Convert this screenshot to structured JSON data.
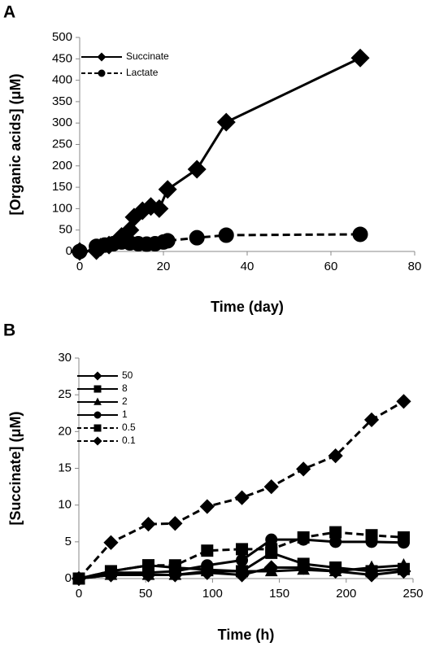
{
  "chart_data": [
    {
      "type": "line",
      "panel_label": "A",
      "x_label": "Time (day)",
      "y_label": "[Organic acids] (μM)",
      "xlim": [
        0,
        80
      ],
      "xticks": [
        0,
        20,
        40,
        60,
        80
      ],
      "ylim": [
        0,
        500
      ],
      "yticks": [
        0,
        50,
        100,
        150,
        200,
        250,
        300,
        350,
        400,
        450,
        500
      ],
      "grid": false,
      "series": [
        {
          "name": "Succinate",
          "color": "#000000",
          "marker": "diamond",
          "dash": false,
          "x": [
            0,
            4,
            5,
            7,
            9,
            10,
            12,
            13,
            15,
            17,
            19,
            21,
            28,
            35,
            67
          ],
          "values": [
            0,
            2,
            10,
            15,
            25,
            35,
            50,
            80,
            95,
            105,
            100,
            145,
            192,
            302,
            452
          ]
        },
        {
          "name": "Lactate",
          "color": "#000000",
          "marker": "circle",
          "dash": true,
          "x": [
            0,
            4,
            6,
            8,
            10,
            12,
            14,
            16,
            18,
            20,
            21,
            28,
            35,
            67
          ],
          "values": [
            0,
            12,
            15,
            18,
            22,
            20,
            18,
            17,
            18,
            22,
            25,
            32,
            38,
            40
          ]
        }
      ]
    },
    {
      "type": "line",
      "panel_label": "B",
      "x_label": "Time (h)",
      "y_label": "[Succinate] (μM)",
      "xlim": [
        0,
        250
      ],
      "xticks": [
        0,
        50,
        100,
        150,
        200,
        250
      ],
      "ylim": [
        0,
        30
      ],
      "yticks": [
        0,
        5,
        10,
        15,
        20,
        25,
        30
      ],
      "grid": false,
      "x": [
        0,
        24,
        52,
        72,
        96,
        122,
        144,
        168,
        192,
        219,
        243
      ],
      "series": [
        {
          "name": "50",
          "color": "#000000",
          "marker": "diamond",
          "dash": false,
          "values": [
            0,
            0.5,
            0.5,
            0.5,
            0.8,
            0.5,
            1.5,
            1.5,
            1,
            0.5,
            1
          ]
        },
        {
          "name": "8",
          "color": "#000000",
          "marker": "square",
          "dash": false,
          "values": [
            0,
            1,
            1.8,
            1.5,
            1.2,
            1,
            3.5,
            2,
            1.5,
            1,
            1.3
          ]
        },
        {
          "name": "2",
          "color": "#000000",
          "marker": "triangle",
          "dash": false,
          "values": [
            0,
            0.5,
            0.5,
            0.5,
            1,
            1,
            1,
            1.2,
            1,
            1.5,
            1.8
          ]
        },
        {
          "name": "1",
          "color": "#000000",
          "marker": "circle",
          "dash": false,
          "values": [
            0,
            0.8,
            0.8,
            1,
            1.8,
            2.5,
            5.3,
            5.3,
            5,
            5,
            4.9
          ]
        },
        {
          "name": "0.5",
          "color": "#000000",
          "marker": "square",
          "dash": true,
          "values": [
            0,
            1,
            1.8,
            1.8,
            3.8,
            4,
            4,
            5.6,
            6.3,
            5.9,
            5.6
          ]
        },
        {
          "name": "0.1",
          "color": "#000000",
          "marker": "diamond",
          "dash": true,
          "values": [
            0,
            4.9,
            7.4,
            7.5,
            9.8,
            11,
            12.5,
            14.9,
            16.7,
            21.6,
            24.1
          ]
        }
      ]
    }
  ]
}
